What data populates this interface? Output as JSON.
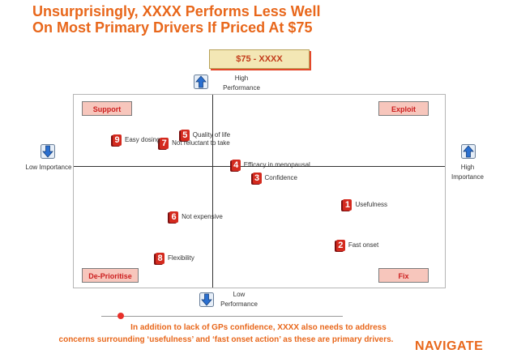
{
  "title": {
    "line1": "Unsurprisingly, XXXX Performs Less Well",
    "line2": "On Most Primary Drivers If Priced At $75"
  },
  "tag": "$75 - XXXX",
  "axes": {
    "top": "High Performance",
    "bottom": "Low Performance",
    "left": "Low Importance",
    "right": "High Importance"
  },
  "quadrants": {
    "top_left": "Support",
    "top_right": "Exploit",
    "bottom_left": "De-Prioritise",
    "bottom_right": "Fix"
  },
  "chart_data": {
    "type": "scatter",
    "xlabel": "Importance",
    "ylabel": "Performance",
    "xlim": [
      -1,
      1
    ],
    "ylim": [
      -1,
      1
    ],
    "points": [
      {
        "rank": 1,
        "label": "Usefulness",
        "x": 0.58,
        "y": -0.32
      },
      {
        "rank": 2,
        "label": "Fast onset",
        "x": 0.55,
        "y": -0.65
      },
      {
        "rank": 3,
        "label": "Confidence",
        "x": 0.19,
        "y": -0.1
      },
      {
        "rank": 4,
        "label": "Efficacy in menopausal",
        "x": 0.1,
        "y": 0.01
      },
      {
        "rank": 5,
        "label": "Quality of life",
        "x": -0.2,
        "y": 0.43
      },
      {
        "rank": 6,
        "label": "Not expensive",
        "x": -0.28,
        "y": -0.42
      },
      {
        "rank": 7,
        "label": "Not reluctant to take",
        "x": -0.35,
        "y": 0.32
      },
      {
        "rank": 8,
        "label": "Flexibility",
        "x": -0.38,
        "y": -0.76
      },
      {
        "rank": 9,
        "label": "Easy dosing",
        "x": -0.69,
        "y": 0.36
      }
    ]
  },
  "footer": {
    "line1": "In addition to lack of GPs confidence, XXXX also needs to address",
    "line2": "concerns surrounding ‘usefulness’ and ‘fast onset action’ as these are primary drivers."
  },
  "logo": "NAVIGATE"
}
